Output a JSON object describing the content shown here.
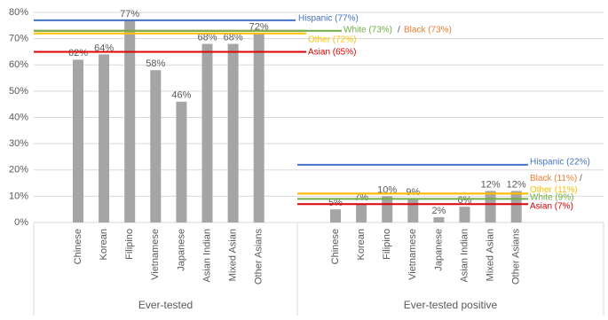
{
  "chart_data": {
    "type": "bar",
    "color": "#a5a5a5",
    "grid": true,
    "ylim": [
      0,
      80
    ],
    "yticks": [
      {
        "value": 0,
        "label": "0%"
      },
      {
        "value": 10,
        "label": "10%"
      },
      {
        "value": 20,
        "label": "20%"
      },
      {
        "value": 30,
        "label": "30%"
      },
      {
        "value": 40,
        "label": "40%"
      },
      {
        "value": 50,
        "label": "50%"
      },
      {
        "value": 60,
        "label": "60%"
      },
      {
        "value": 70,
        "label": "70%"
      },
      {
        "value": 80,
        "label": "80%"
      }
    ],
    "groups": [
      {
        "name": "Ever-tested",
        "categories": [
          "Chinese",
          "Korean",
          "Filipino",
          "Vietnamese",
          "Japanese",
          "Asian Indian",
          "Mixed Asian",
          "Other Asians"
        ],
        "values": [
          62,
          64,
          77,
          58,
          46,
          68,
          68,
          72
        ],
        "value_labels": [
          "62%",
          "64%",
          "77%",
          "58%",
          "46%",
          "68%",
          "68%",
          "72%"
        ],
        "separator": "/",
        "reference_lines": [
          {
            "name": "Hispanic (77%)",
            "value": 77,
            "color": "#4472c4"
          },
          {
            "name": "Black (73%)",
            "value": 73,
            "color": "#ed7d31"
          },
          {
            "name": "White (73%)",
            "value": 73,
            "color": "#70ad47"
          },
          {
            "name": "Other (72%)",
            "value": 72,
            "color": "#ffc000"
          },
          {
            "name": "Asian (65%)",
            "value": 65,
            "color": "#e00000"
          }
        ]
      },
      {
        "name": "Ever-tested positive",
        "categories": [
          "Chinese",
          "Korean",
          "Filipino",
          "Vietnamese",
          "Japanese",
          "Asian Indian",
          "Mixed Asian",
          "Other Asians"
        ],
        "values": [
          5,
          7,
          10,
          9,
          2,
          6,
          12,
          12
        ],
        "value_labels": [
          "5%",
          "7%",
          "10%",
          "9%",
          "2%",
          "6%",
          "12%",
          "12%"
        ],
        "separator": "/",
        "reference_lines": [
          {
            "name": "Hispanic (22%)",
            "value": 22,
            "color": "#4472c4"
          },
          {
            "name": "Black (11%)",
            "value": 11,
            "color": "#ed7d31"
          },
          {
            "name": "Other (11%)",
            "value": 11,
            "color": "#ffc000"
          },
          {
            "name": "White (9%)",
            "value": 9,
            "color": "#70ad47"
          },
          {
            "name": "Asian (7%)",
            "value": 7,
            "color": "#e00000"
          }
        ]
      }
    ]
  }
}
